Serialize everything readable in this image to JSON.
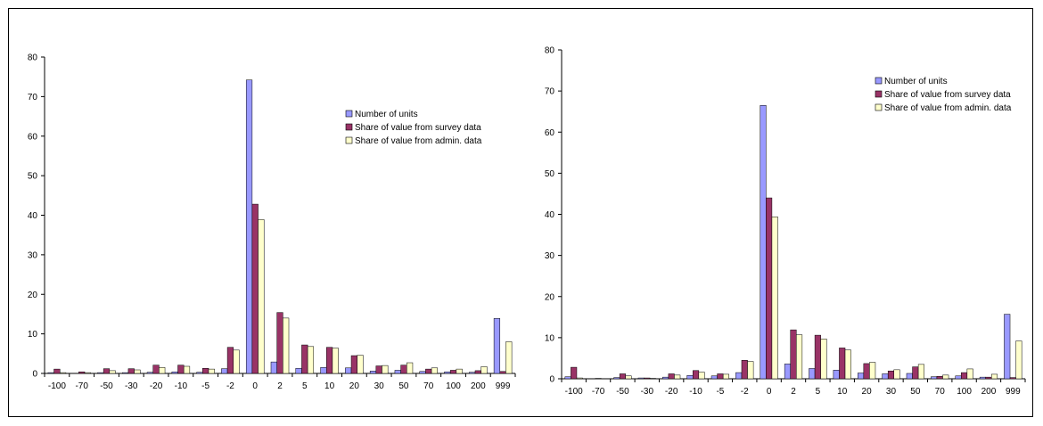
{
  "chart_data": [
    {
      "type": "bar",
      "categories": [
        "-100",
        "-70",
        "-50",
        "-30",
        "-20",
        "-10",
        "-5",
        "-2",
        "0",
        "2",
        "5",
        "10",
        "20",
        "30",
        "50",
        "70",
        "100",
        "200",
        "999"
      ],
      "ylim": [
        0,
        80
      ],
      "yticks": [
        0,
        10,
        20,
        30,
        40,
        50,
        60,
        70,
        80
      ],
      "legend_position": "top-right",
      "grid": false,
      "series": [
        {
          "name": "Number of units",
          "color": "#9999FF",
          "values": [
            0.2,
            0,
            0.2,
            0.2,
            0.3,
            0.4,
            0.3,
            1.2,
            74.2,
            2.9,
            1.3,
            1.5,
            1.4,
            0.6,
            0.8,
            0.5,
            0.4,
            0.3,
            13.9
          ]
        },
        {
          "name": "Share of value from survey data",
          "color": "#993366",
          "values": [
            1.1,
            0.4,
            1.2,
            1.2,
            2.1,
            2.1,
            1.3,
            6.6,
            42.8,
            15.4,
            7.2,
            6.6,
            4.5,
            1.9,
            2.1,
            1.1,
            0.8,
            0.7,
            0.5
          ]
        },
        {
          "name": "Share of value from admin. data",
          "color": "#FFFFCC",
          "values": [
            0.2,
            0.2,
            0.7,
            0.9,
            1.5,
            1.8,
            1.1,
            5.9,
            38.9,
            14.0,
            6.8,
            6.4,
            4.6,
            2.0,
            2.7,
            1.4,
            1.1,
            1.7,
            8.0
          ]
        }
      ]
    },
    {
      "type": "bar",
      "categories": [
        "-100",
        "-70",
        "-50",
        "-30",
        "-20",
        "-10",
        "-5",
        "-2",
        "0",
        "2",
        "5",
        "10",
        "20",
        "30",
        "50",
        "70",
        "100",
        "200",
        "999"
      ],
      "ylim": [
        0,
        80
      ],
      "yticks": [
        0,
        10,
        20,
        30,
        40,
        50,
        60,
        70,
        80
      ],
      "legend_position": "top-right",
      "grid": false,
      "series": [
        {
          "name": "Number of units",
          "color": "#9999FF",
          "values": [
            0.5,
            0,
            0.3,
            0.2,
            0.4,
            0.8,
            0.7,
            1.5,
            66.5,
            3.6,
            2.5,
            2.1,
            1.4,
            1.2,
            1.3,
            0.5,
            0.7,
            0.4,
            15.7
          ]
        },
        {
          "name": "Share of value from survey data",
          "color": "#993366",
          "values": [
            2.8,
            0.1,
            1.2,
            0.2,
            1.2,
            2.0,
            1.2,
            4.5,
            44.0,
            11.9,
            10.6,
            7.5,
            3.7,
            1.9,
            2.9,
            0.6,
            1.5,
            0.4,
            0.3
          ]
        },
        {
          "name": "Share of value from admin. data",
          "color": "#FFFFCC",
          "values": [
            0.2,
            0,
            0.7,
            0.1,
            0.9,
            1.6,
            1.1,
            4.2,
            39.4,
            10.7,
            9.7,
            7.0,
            4.0,
            2.2,
            3.5,
            0.9,
            2.4,
            1.1,
            9.2
          ]
        }
      ]
    }
  ]
}
